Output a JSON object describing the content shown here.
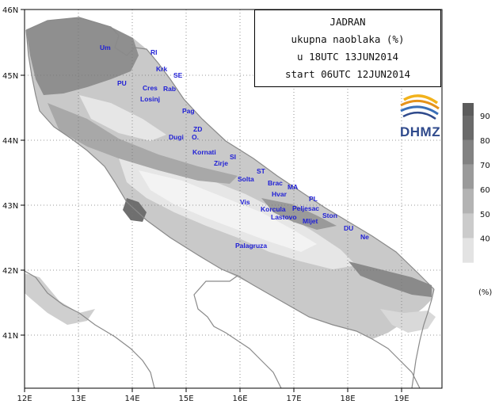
{
  "title_box": {
    "line1": "JADRAN",
    "line2": "ukupna naoblaka (%)",
    "line3": "u 18UTC 13JUN2014",
    "line4": "start 06UTC 12JUN2014"
  },
  "logo": {
    "text": "DHMZ"
  },
  "lat_labels": [
    "46N",
    "45N",
    "44N",
    "43N",
    "42N",
    "41N"
  ],
  "lon_labels": [
    "12E",
    "13E",
    "14E",
    "15E",
    "16E",
    "17E",
    "18E",
    "19E"
  ],
  "legend": {
    "levels": [
      "90",
      "80",
      "70",
      "60",
      "50",
      "40"
    ],
    "unit": "(%)",
    "colors": [
      "#6a6a6a",
      "#828282",
      "#9a9a9a",
      "#b3b3b3",
      "#cbcbcb",
      "#e3e3e3"
    ]
  },
  "places": [
    {
      "name": "Um"
    },
    {
      "name": "RI"
    },
    {
      "name": "Krk"
    },
    {
      "name": "SE"
    },
    {
      "name": "PU"
    },
    {
      "name": "Cres"
    },
    {
      "name": "Rab"
    },
    {
      "name": "Losinj"
    },
    {
      "name": "Pag"
    },
    {
      "name": "ZD"
    },
    {
      "name": "Dugi"
    },
    {
      "name": "O."
    },
    {
      "name": "Kornati"
    },
    {
      "name": "SI"
    },
    {
      "name": "Zirje"
    },
    {
      "name": "ST"
    },
    {
      "name": "Solta"
    },
    {
      "name": "Brac"
    },
    {
      "name": "MA"
    },
    {
      "name": "Hvar"
    },
    {
      "name": "PL"
    },
    {
      "name": "Vis"
    },
    {
      "name": "Korcula"
    },
    {
      "name": "Peljesac"
    },
    {
      "name": "Mljet"
    },
    {
      "name": "Lastovo"
    },
    {
      "name": "Ston"
    },
    {
      "name": "DU"
    },
    {
      "name": "Ne"
    },
    {
      "name": "Palagruza"
    }
  ]
}
